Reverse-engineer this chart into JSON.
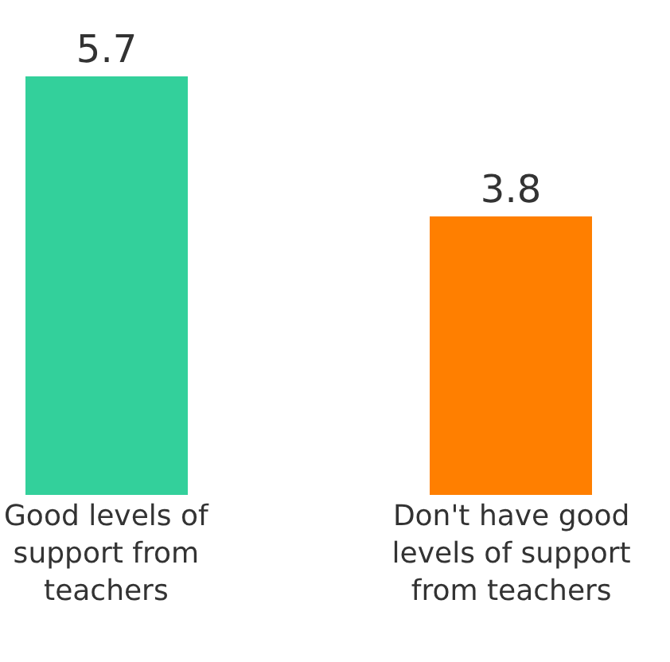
{
  "chart_data": {
    "type": "bar",
    "categories": [
      "Good levels of support from teachers",
      "Don't have good levels of support from teachers"
    ],
    "values": [
      5.7,
      3.8
    ],
    "colors": [
      "#33d09b",
      "#ff7f00"
    ],
    "data_labels": true
  }
}
